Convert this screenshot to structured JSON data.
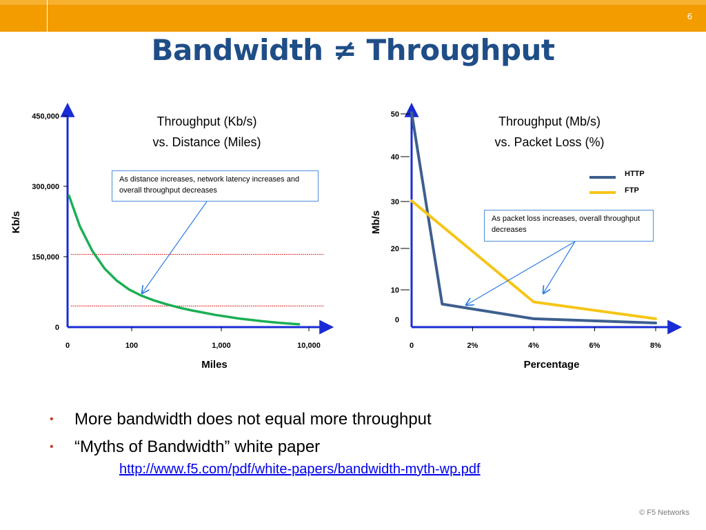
{
  "slide": {
    "page_number": "6",
    "title": "Bandwidth ≠ Throughput",
    "bullets": [
      "More bandwidth does not equal more throughput",
      "“Myths of Bandwidth” white paper"
    ],
    "link": "http://www.f5.com/pdf/white-papers/bandwidth-myth-wp.pdf",
    "footer": "© F5 Networks"
  },
  "colors": {
    "header_orange": "#f39c00",
    "title_blue": "#1f4e87",
    "distance_curve": "#1aaf54",
    "http_line": "#3d5f8e",
    "ftp_line": "#f5c518",
    "axis_blue": "#1a2bd6",
    "reference_line": "#e02020",
    "callout_border": "#4a8cd8",
    "bullet_red": "#c0392b"
  },
  "chart_data": [
    {
      "type": "line",
      "title_lines": [
        "Throughput (Kb/s)",
        "vs. Distance (Miles)"
      ],
      "xlabel": "Miles",
      "ylabel": "Kb/s",
      "x_ticks": [
        "0",
        "100",
        "1,000",
        "10,000"
      ],
      "y_ticks": [
        "0",
        "150,000",
        "300,000",
        "450,000"
      ],
      "ylim": [
        0,
        450000
      ],
      "series": [
        {
          "points": [
            [
              0.06,
              280000
            ],
            [
              0.5,
              215000
            ],
            [
              1.0,
              163000
            ],
            [
              1.5,
              125000
            ],
            [
              2.0,
              99000
            ],
            [
              2.5,
              80000
            ],
            [
              3.0,
              67000
            ],
            [
              3.5,
              57000
            ],
            [
              4.0,
              49000
            ],
            [
              4.5,
              42000
            ],
            [
              5.0,
              36000
            ],
            [
              5.5,
              31000
            ],
            [
              6.0,
              26000
            ],
            [
              6.5,
              22000
            ],
            [
              7.0,
              18000
            ],
            [
              7.5,
              15000
            ],
            [
              8.0,
              12000
            ],
            [
              8.5,
              9500
            ],
            [
              9.0,
              7500
            ],
            [
              9.4,
              6000
            ]
          ]
        }
      ],
      "reference_lines": [
        155000,
        45000
      ],
      "annotation": "As distance increases, network latency increases and overall throughput decreases"
    },
    {
      "type": "line",
      "title_lines": [
        "Throughput (Mb/s)",
        "vs. Packet Loss (%)"
      ],
      "xlabel": "Percentage",
      "ylabel": "Mb/s",
      "x_ticks": [
        "0",
        "2%",
        "4%",
        "6%",
        "8%"
      ],
      "x_values": [
        0,
        2,
        4,
        6,
        8
      ],
      "y_ticks": [
        "0",
        "10",
        "20",
        "30",
        "40",
        "50"
      ],
      "xlim": [
        0,
        8
      ],
      "ylim": [
        0,
        50
      ],
      "series": [
        {
          "name": "HTTP",
          "points": [
            [
              0,
              50
            ],
            [
              1.0,
              4.5
            ],
            [
              4.0,
              1
            ],
            [
              8.0,
              0
            ]
          ]
        },
        {
          "name": "FTP",
          "points": [
            [
              0,
              29
            ],
            [
              4.0,
              5
            ],
            [
              8.0,
              1
            ]
          ]
        }
      ],
      "legend": "right",
      "annotation": "As packet loss increases, overall throughput decreases"
    }
  ]
}
